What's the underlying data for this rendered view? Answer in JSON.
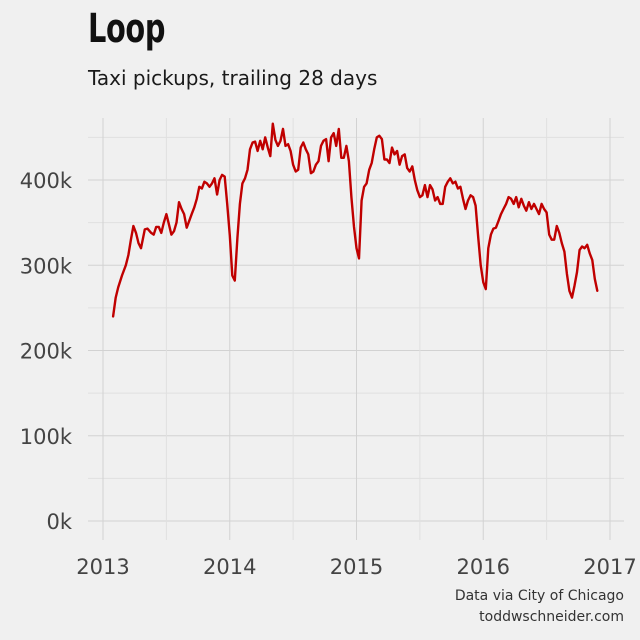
{
  "chart_data": {
    "type": "line",
    "title": "Loop",
    "subtitle": "Taxi pickups, trailing 28 days",
    "xlabel": "",
    "ylabel": "",
    "xlim": [
      2013.0,
      2017.0
    ],
    "ylim": [
      0,
      460000
    ],
    "x_ticks": [
      2013,
      2014,
      2015,
      2016,
      2017
    ],
    "x_tick_labels": [
      "2013",
      "2014",
      "2015",
      "2016",
      "2017"
    ],
    "y_ticks": [
      0,
      100000,
      200000,
      300000,
      400000
    ],
    "y_tick_labels": [
      "0k",
      "100k",
      "200k",
      "300k",
      "400k"
    ],
    "grid": true,
    "line_color": "#c00000",
    "series": [
      {
        "x": [
          2013.08,
          2013.1,
          2013.12,
          2013.15,
          2013.18,
          2013.2,
          2013.22,
          2013.24,
          2013.26,
          2013.28,
          2013.3,
          2013.33,
          2013.35,
          2013.38,
          2013.4,
          2013.42,
          2013.44,
          2013.46,
          2013.48,
          2013.5,
          2013.52,
          2013.54,
          2013.56,
          2013.58,
          2013.6,
          2013.62,
          2013.64,
          2013.66,
          2013.68,
          2013.7,
          2013.72,
          2013.74,
          2013.76,
          2013.78,
          2013.8,
          2013.82,
          2013.84,
          2013.86,
          2013.88,
          2013.9,
          2013.92,
          2013.94,
          2013.96,
          2013.98,
          2014.0,
          2014.02,
          2014.04,
          2014.06,
          2014.08,
          2014.1,
          2014.12,
          2014.14,
          2014.16,
          2014.18,
          2014.2,
          2014.22,
          2014.24,
          2014.26,
          2014.28,
          2014.3,
          2014.32,
          2014.34,
          2014.36,
          2014.38,
          2014.4,
          2014.42,
          2014.44,
          2014.46,
          2014.48,
          2014.5,
          2014.52,
          2014.54,
          2014.56,
          2014.58,
          2014.6,
          2014.62,
          2014.64,
          2014.66,
          2014.68,
          2014.7,
          2014.72,
          2014.74,
          2014.76,
          2014.78,
          2014.8,
          2014.82,
          2014.84,
          2014.86,
          2014.88,
          2014.9,
          2014.92,
          2014.94,
          2014.96,
          2014.98,
          2015.0,
          2015.02,
          2015.04,
          2015.06,
          2015.08,
          2015.1,
          2015.12,
          2015.14,
          2015.16,
          2015.18,
          2015.2,
          2015.22,
          2015.24,
          2015.26,
          2015.28,
          2015.3,
          2015.32,
          2015.34,
          2015.36,
          2015.38,
          2015.4,
          2015.42,
          2015.44,
          2015.46,
          2015.48,
          2015.5,
          2015.52,
          2015.54,
          2015.56,
          2015.58,
          2015.6,
          2015.62,
          2015.64,
          2015.66,
          2015.68,
          2015.7,
          2015.72,
          2015.74,
          2015.76,
          2015.78,
          2015.8,
          2015.82,
          2015.84,
          2015.86,
          2015.88,
          2015.9,
          2015.92,
          2015.94,
          2015.96,
          2015.98,
          2016.0,
          2016.02,
          2016.04,
          2016.06,
          2016.08,
          2016.1,
          2016.12,
          2016.14,
          2016.16,
          2016.18,
          2016.2,
          2016.22,
          2016.24,
          2016.26,
          2016.28,
          2016.3,
          2016.32,
          2016.34,
          2016.36,
          2016.38,
          2016.4,
          2016.42,
          2016.44,
          2016.46,
          2016.48,
          2016.5,
          2016.52,
          2016.54,
          2016.56,
          2016.58,
          2016.6,
          2016.62,
          2016.64,
          2016.66,
          2016.68,
          2016.7,
          2016.72,
          2016.74,
          2016.76,
          2016.78,
          2016.8,
          2016.82,
          2016.84,
          2016.86,
          2016.88,
          2016.9
        ],
        "y": [
          240000,
          262000,
          274000,
          288000,
          300000,
          312000,
          330000,
          346000,
          338000,
          326000,
          320000,
          342000,
          343000,
          338000,
          336000,
          345000,
          345000,
          338000,
          350000,
          360000,
          348000,
          336000,
          340000,
          350000,
          374000,
          366000,
          360000,
          344000,
          352000,
          360000,
          368000,
          378000,
          392000,
          390000,
          398000,
          396000,
          392000,
          396000,
          402000,
          383000,
          400000,
          406000,
          404000,
          372000,
          335000,
          288000,
          282000,
          332000,
          372000,
          396000,
          402000,
          412000,
          436000,
          444000,
          445000,
          434000,
          446000,
          436000,
          450000,
          438000,
          428000,
          466000,
          447000,
          440000,
          446000,
          460000,
          440000,
          442000,
          434000,
          418000,
          410000,
          412000,
          438000,
          444000,
          436000,
          430000,
          408000,
          410000,
          418000,
          422000,
          440000,
          446000,
          448000,
          422000,
          450000,
          455000,
          440000,
          460000,
          426000,
          426000,
          440000,
          422000,
          380000,
          345000,
          320000,
          308000,
          376000,
          392000,
          396000,
          412000,
          420000,
          436000,
          450000,
          452000,
          448000,
          424000,
          424000,
          420000,
          438000,
          430000,
          434000,
          418000,
          428000,
          430000,
          414000,
          410000,
          416000,
          400000,
          388000,
          380000,
          382000,
          394000,
          380000,
          394000,
          389000,
          376000,
          380000,
          372000,
          372000,
          392000,
          398000,
          402000,
          396000,
          398000,
          390000,
          392000,
          378000,
          366000,
          376000,
          382000,
          380000,
          370000,
          333000,
          300000,
          280000,
          272000,
          320000,
          336000,
          343000,
          344000,
          352000,
          360000,
          366000,
          372000,
          380000,
          378000,
          372000,
          380000,
          368000,
          378000,
          370000,
          364000,
          374000,
          366000,
          372000,
          366000,
          360000,
          372000,
          366000,
          362000,
          336000,
          330000,
          330000,
          346000,
          338000,
          326000,
          316000,
          290000,
          270000,
          262000,
          276000,
          292000,
          318000,
          322000,
          320000,
          324000,
          314000,
          306000,
          284000,
          270000
        ]
      }
    ]
  },
  "captions": {
    "line1": "Data via City of Chicago",
    "line2": "toddwschneider.com"
  }
}
